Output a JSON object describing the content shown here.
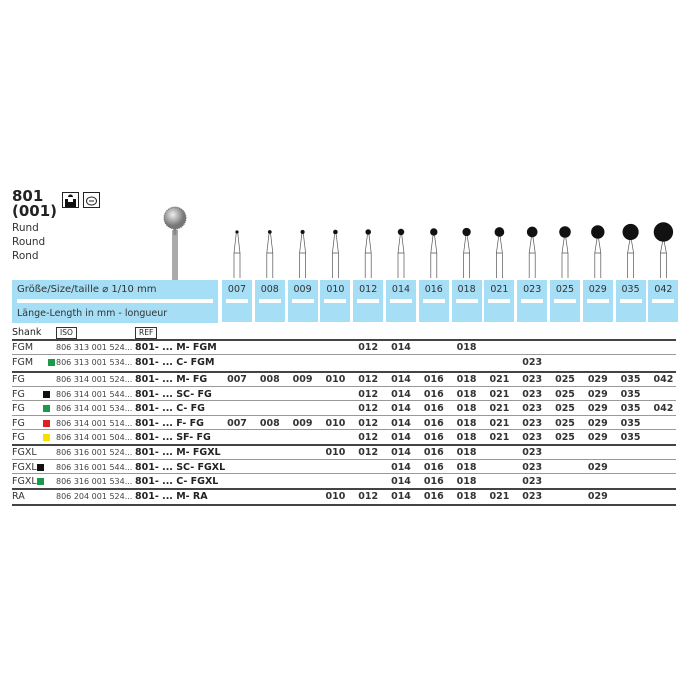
{
  "product": {
    "number": "801",
    "iso_code": "(001)",
    "names": [
      "Rund",
      "Round",
      "Rond"
    ],
    "icons": [
      "handpiece-icon",
      "diamond-grit-icon"
    ]
  },
  "header": {
    "size_label": "Größe/Size/taille ⌀ 1/10 mm",
    "length_label": "Länge-Length in mm - longueur",
    "shank_label": "Shank",
    "iso_label": "ISO",
    "ref_label": "REF"
  },
  "sizes": [
    "007",
    "008",
    "009",
    "010",
    "012",
    "014",
    "016",
    "018",
    "021",
    "023",
    "025",
    "029",
    "035",
    "042"
  ],
  "grit_colors": {
    "green": "#1a9a4a",
    "black": "#111111",
    "red": "#e02020",
    "yellow": "#f5e000",
    "blue": "#a6def5"
  },
  "rows": [
    {
      "shank": "FGM",
      "grit": "",
      "iso": "806 313 001 524...",
      "ref": "801- ... M- FGM",
      "sizes": [
        "012",
        "014",
        "018"
      ]
    },
    {
      "shank": "FGM",
      "grit": "green",
      "iso": "806 313 001 534...",
      "ref": "801- ... C- FGM",
      "sizes": [
        "023"
      ]
    },
    {
      "shank": "FG",
      "grit": "",
      "iso": "806 314 001 524...",
      "ref": "801- ... M- FG",
      "sizes": [
        "007",
        "008",
        "009",
        "010",
        "012",
        "014",
        "016",
        "018",
        "021",
        "023",
        "025",
        "029",
        "035",
        "042"
      ]
    },
    {
      "shank": "FG",
      "grit": "black",
      "iso": "806 314 001 544...",
      "ref": "801- ... SC- FG",
      "sizes": [
        "012",
        "014",
        "016",
        "018",
        "021",
        "023",
        "025",
        "029",
        "035"
      ]
    },
    {
      "shank": "FG",
      "grit": "green",
      "iso": "806 314 001 534...",
      "ref": "801- ... C- FG",
      "sizes": [
        "012",
        "014",
        "016",
        "018",
        "021",
        "023",
        "025",
        "029",
        "035",
        "042"
      ]
    },
    {
      "shank": "FG",
      "grit": "red",
      "iso": "806 314 001 514...",
      "ref": "801- ... F- FG",
      "sizes": [
        "007",
        "008",
        "009",
        "010",
        "012",
        "014",
        "016",
        "018",
        "021",
        "023",
        "025",
        "029",
        "035"
      ]
    },
    {
      "shank": "FG",
      "grit": "yellow",
      "iso": "806 314 001 504...",
      "ref": "801- ... SF- FG",
      "sizes": [
        "012",
        "014",
        "016",
        "018",
        "021",
        "023",
        "025",
        "029",
        "035"
      ]
    },
    {
      "shank": "FGXL",
      "grit": "",
      "iso": "806 316 001 524...",
      "ref": "801- ... M- FGXL",
      "sizes": [
        "010",
        "012",
        "014",
        "016",
        "018",
        "023"
      ]
    },
    {
      "shank": "FGXL",
      "grit": "black",
      "iso": "806 316 001 544...",
      "ref": "801- ... SC- FGXL",
      "sizes": [
        "014",
        "016",
        "018",
        "023",
        "029"
      ]
    },
    {
      "shank": "FGXL",
      "grit": "green",
      "iso": "806 316 001 534...",
      "ref": "801- ... C- FGXL",
      "sizes": [
        "014",
        "016",
        "018",
        "023"
      ]
    },
    {
      "shank": "RA",
      "grit": "",
      "iso": "806 204 001 524...",
      "ref": "801- ... M- RA",
      "sizes": [
        "010",
        "012",
        "014",
        "016",
        "018",
        "021",
        "023",
        "029"
      ]
    }
  ]
}
